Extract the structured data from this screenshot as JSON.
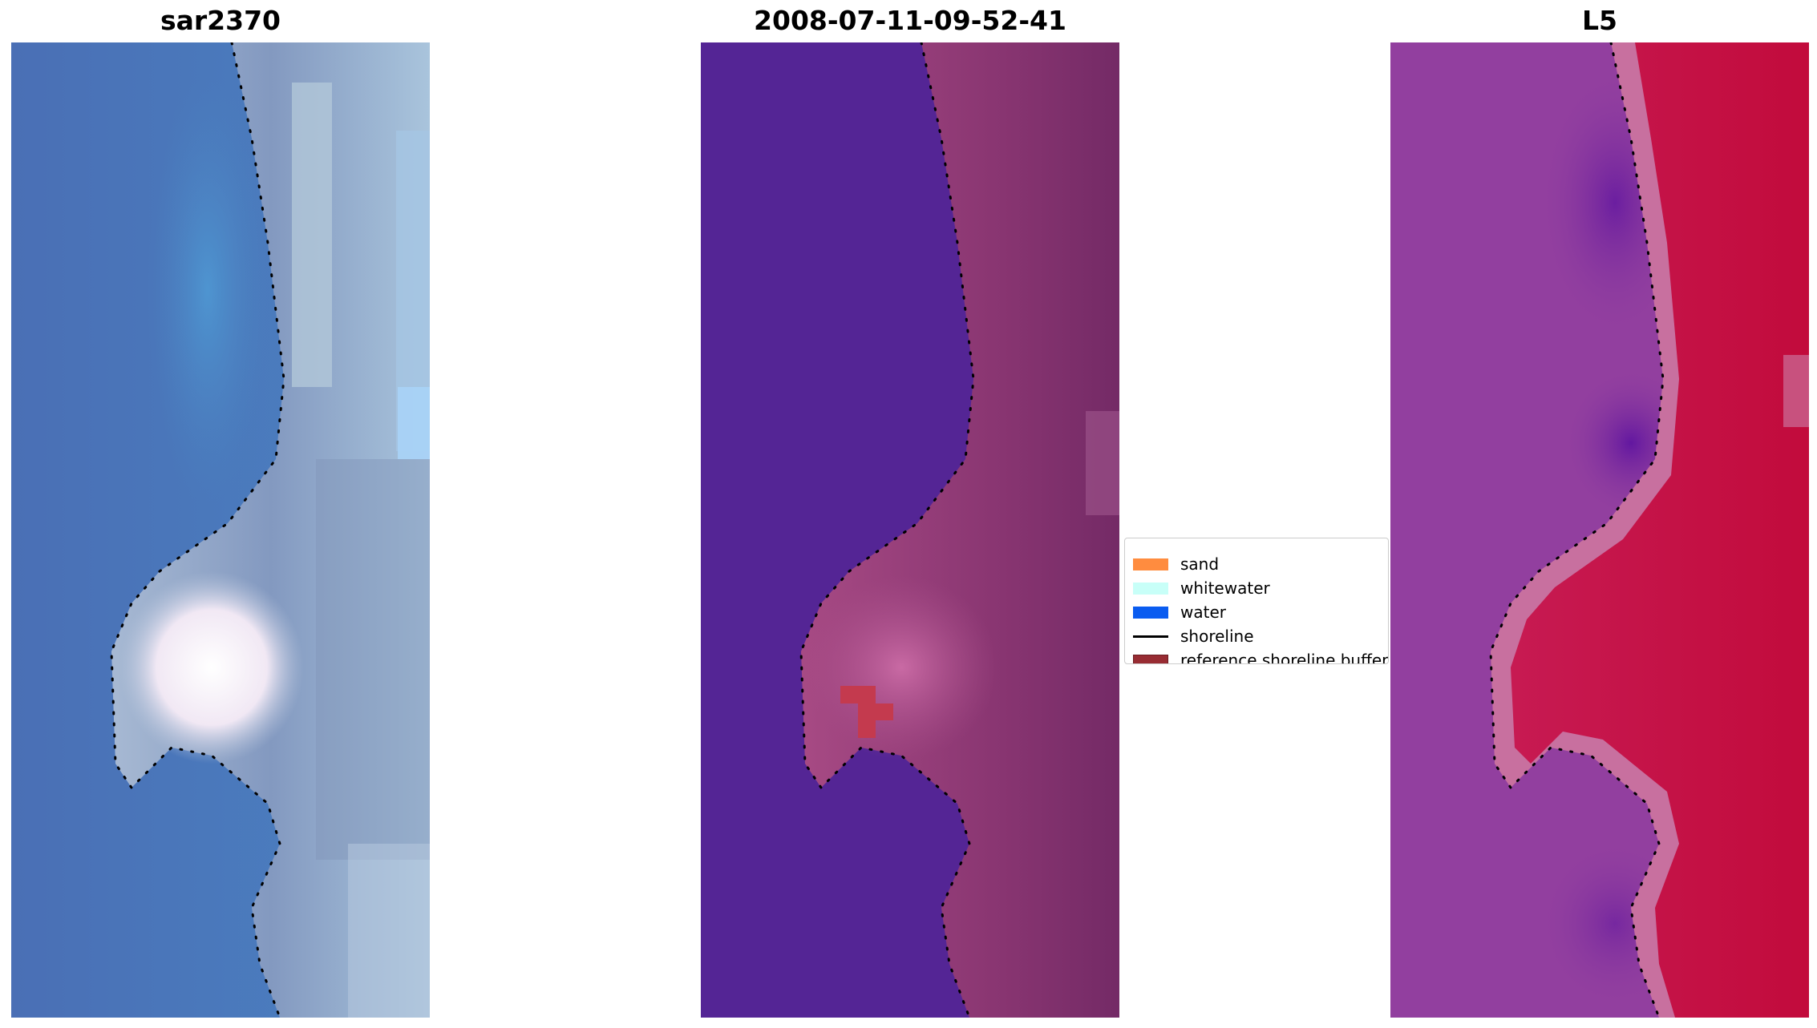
{
  "titles": {
    "left": "sar2370",
    "middle": "2008-07-11-09-52-41",
    "right": "L5"
  },
  "legend": {
    "items": [
      {
        "label": "sand",
        "color": "#ff8c3f",
        "kind": "patch"
      },
      {
        "label": "whitewater",
        "color": "#c8fff8",
        "kind": "patch"
      },
      {
        "label": "water",
        "color": "#0a5cf0",
        "kind": "patch"
      },
      {
        "label": "shoreline",
        "color": "#000000",
        "kind": "line"
      },
      {
        "label": "reference shoreline buffer",
        "color": "#982c33",
        "kind": "patch"
      }
    ]
  },
  "colors": {
    "rgb_water": "#4a78b8",
    "rgb_sand": "#c0ccd9",
    "rgb_whitewash": "#ffffff",
    "class_water": "#542595",
    "class_sand": "#993b76",
    "class_buffer": "#c43a4e",
    "index_low": "#8a3a9e",
    "index_high": "#c20b3c"
  }
}
